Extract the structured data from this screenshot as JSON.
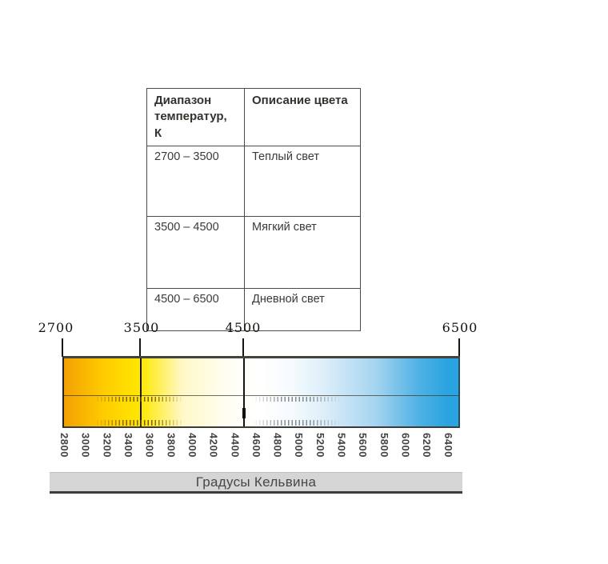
{
  "table": {
    "col_headers": [
      "Диапазон температур, К",
      "Описание цвета"
    ],
    "rows": [
      {
        "range": "2700 – 3500",
        "description": "Теплый свет"
      },
      {
        "range": "3500 – 4500",
        "description": "Мягкий свет"
      },
      {
        "range": "4500 – 6500",
        "description": "Дневной свет"
      }
    ]
  },
  "scale": {
    "major_ticks": [
      {
        "label": "2700"
      },
      {
        "label": "3500"
      },
      {
        "label": "4500"
      },
      {
        "label": "6500"
      }
    ],
    "minor_tick_labels": [
      "2800",
      "3000",
      "3200",
      "3400",
      "3600",
      "3800",
      "4000",
      "4200",
      "4400",
      "4600",
      "4800",
      "5000",
      "5200",
      "5400",
      "5600",
      "5800",
      "6000",
      "6200",
      "6400"
    ],
    "axis_title": "Градусы Кельвина"
  },
  "chart_data": [
    {
      "type": "table",
      "columns": [
        "Диапазон температур, К",
        "Описание цвета"
      ],
      "rows": [
        [
          "2700 – 3500",
          "Теплый свет"
        ],
        [
          "3500 – 4500",
          "Мягкий свет"
        ],
        [
          "4500 – 6500",
          "Дневной свет"
        ]
      ]
    },
    {
      "type": "heatmap",
      "title": "Шкала цветовой температуры",
      "xlabel": "Градусы Кельвина",
      "x_range": [
        2700,
        6500
      ],
      "major_ticks": [
        2700,
        3500,
        4500,
        6500
      ],
      "minor_ticks": [
        2800,
        3000,
        3200,
        3400,
        3600,
        3800,
        4000,
        4200,
        4400,
        4600,
        4800,
        5000,
        5200,
        5400,
        5600,
        5800,
        6000,
        6200,
        6400
      ],
      "legend_position": "none",
      "grid": false,
      "gradient_stops": [
        {
          "kelvin": 2700,
          "pos": 0,
          "color": "#F2A002"
        },
        {
          "kelvin": 3100,
          "pos": 10,
          "color": "#FFCB00"
        },
        {
          "kelvin": 3500,
          "pos": 19.5,
          "color": "#FFE800"
        },
        {
          "kelvin": 3850,
          "pos": 30,
          "color": "#FFF8C8"
        },
        {
          "kelvin": 4300,
          "pos": 42,
          "color": "#FFFEF4"
        },
        {
          "kelvin": 4600,
          "pos": 50,
          "color": "#FFFFFF"
        },
        {
          "kelvin": 4900,
          "pos": 58,
          "color": "#F4FAFD"
        },
        {
          "kelvin": 5200,
          "pos": 66,
          "color": "#DDEEF9"
        },
        {
          "kelvin": 5700,
          "pos": 79,
          "color": "#A5D4F0"
        },
        {
          "kelvin": 6100,
          "pos": 90,
          "color": "#4FB1E4"
        },
        {
          "kelvin": 6400,
          "pos": 97,
          "color": "#2AA4E0"
        },
        {
          "kelvin": 6500,
          "pos": 100,
          "color": "#2AA4E0"
        }
      ]
    }
  ]
}
